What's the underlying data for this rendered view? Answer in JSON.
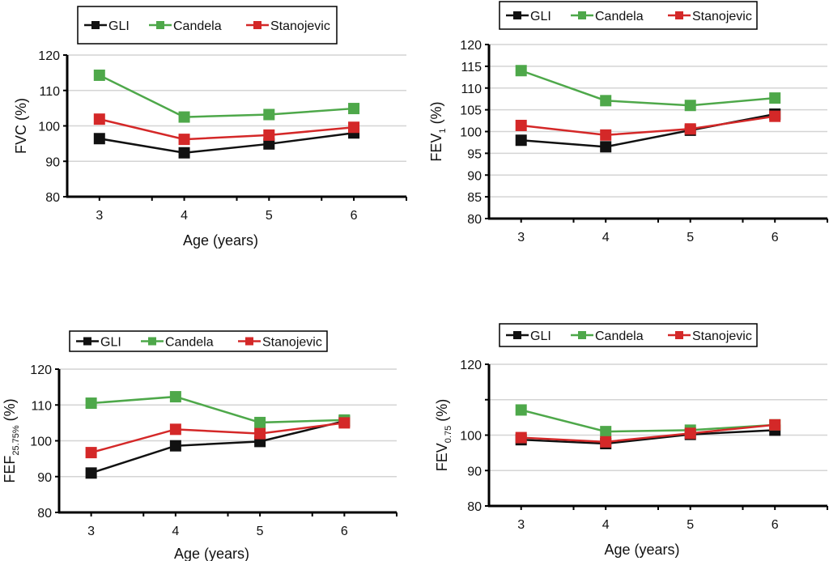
{
  "colors": {
    "GLI": "#111111",
    "Candela": "#4ea84a",
    "Stanojevic": "#d42828",
    "grid": "#d4d4d4",
    "axis": "#000000"
  },
  "chart_data": [
    {
      "type": "line",
      "id": "fvc",
      "position": "top-left",
      "title": "",
      "ylabel": "FVC (%)",
      "ylabel_main": "FVC",
      "ylabel_sub": "",
      "ylabel_suffix": " (%)",
      "xlabel": "Age (years)",
      "categories": [
        "3",
        "4",
        "5",
        "6"
      ],
      "ylim": [
        80,
        120
      ],
      "yticks": [
        80,
        90,
        100,
        110,
        120
      ],
      "ytick_labels": [
        "80",
        "90",
        "100",
        "110",
        "120"
      ],
      "grid": true,
      "legend": [
        "GLI",
        "Candela",
        "Stanojevic"
      ],
      "legend_position": "top",
      "series": [
        {
          "name": "GLI",
          "values": [
            96.4,
            92.4,
            94.9,
            98.0
          ]
        },
        {
          "name": "Candela",
          "values": [
            114.3,
            102.5,
            103.2,
            104.9
          ]
        },
        {
          "name": "Stanojevic",
          "values": [
            101.9,
            96.2,
            97.4,
            99.6
          ]
        }
      ]
    },
    {
      "type": "line",
      "id": "fev1",
      "position": "top-right",
      "title": "",
      "ylabel": "FEV1 (%)",
      "ylabel_main": "FEV",
      "ylabel_sub": "1",
      "ylabel_suffix": " (%)",
      "xlabel": "",
      "categories": [
        "3",
        "4",
        "5",
        "6"
      ],
      "ylim": [
        80,
        120
      ],
      "yticks": [
        80,
        85,
        90,
        95,
        100,
        105,
        110,
        115,
        120
      ],
      "ytick_labels": [
        "80",
        "85",
        "90",
        "95",
        "100",
        "105",
        "110",
        "115",
        "120"
      ],
      "grid": true,
      "legend": [
        "GLI",
        "Candela",
        "Stanojevic"
      ],
      "legend_position": "top",
      "series": [
        {
          "name": "GLI",
          "values": [
            98.0,
            96.5,
            100.3,
            104.0
          ]
        },
        {
          "name": "Candela",
          "values": [
            114.0,
            107.1,
            106.0,
            107.7
          ]
        },
        {
          "name": "Stanojevic",
          "values": [
            101.4,
            99.2,
            100.6,
            103.5
          ]
        }
      ]
    },
    {
      "type": "line",
      "id": "fef2575",
      "position": "bottom-left",
      "title": "",
      "ylabel": "FEF25.75% (%)",
      "ylabel_main": "FEF",
      "ylabel_sub": "25.75%",
      "ylabel_suffix": " (%)",
      "xlabel": "Age (years)",
      "categories": [
        "3",
        "4",
        "5",
        "6"
      ],
      "ylim": [
        80,
        120
      ],
      "yticks": [
        80,
        90,
        100,
        110,
        120
      ],
      "ytick_labels": [
        "80",
        "90",
        "100",
        "110",
        "120"
      ],
      "grid": true,
      "legend": [
        "GLI",
        "Candela",
        "Stanojevic"
      ],
      "legend_position": "top",
      "series": [
        {
          "name": "GLI",
          "values": [
            91.0,
            98.6,
            99.8,
            105.5
          ]
        },
        {
          "name": "Candela",
          "values": [
            110.5,
            112.3,
            105.1,
            105.8
          ]
        },
        {
          "name": "Stanojevic",
          "values": [
            96.7,
            103.2,
            102.0,
            105.0
          ]
        }
      ]
    },
    {
      "type": "line",
      "id": "fev075",
      "position": "bottom-right",
      "title": "",
      "ylabel": "FEV0.75 (%)",
      "ylabel_main": "FEV",
      "ylabel_sub": "0.75",
      "ylabel_suffix": " (%)",
      "xlabel": "Age (years)",
      "categories": [
        "3",
        "4",
        "5",
        "6"
      ],
      "ylim": [
        80,
        120
      ],
      "yticks": [
        80,
        90,
        100,
        110,
        120
      ],
      "ytick_labels": [
        "80",
        "90",
        "100",
        "",
        "120"
      ],
      "grid": true,
      "legend": [
        "GLI",
        "Candela",
        "Stanojevic"
      ],
      "legend_position": "top",
      "series": [
        {
          "name": "GLI",
          "values": [
            98.7,
            97.6,
            100.2,
            101.4
          ]
        },
        {
          "name": "Candela",
          "values": [
            107.1,
            101.0,
            101.4,
            102.9
          ]
        },
        {
          "name": "Stanojevic",
          "values": [
            99.3,
            98.1,
            100.5,
            102.9
          ]
        }
      ]
    }
  ]
}
